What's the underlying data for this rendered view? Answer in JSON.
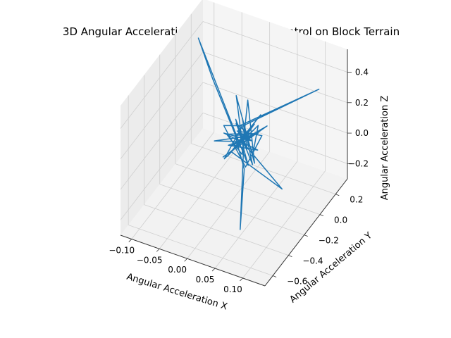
{
  "chart_data": {
    "type": "line3d",
    "title": "3D Angular Acceleration Plot for Neural Control on Block Terrain",
    "xlabel": "Angular Acceleration X",
    "ylabel": "Angular Acceleration Y",
    "zlabel": "Angular Acceleration Z",
    "xlim": [
      -0.12,
      0.14
    ],
    "ylim": [
      -0.7,
      0.35
    ],
    "zlim": [
      -0.3,
      0.55
    ],
    "x_ticks": [
      "−0.10",
      "−0.05",
      "0.00",
      "0.05",
      "0.10"
    ],
    "y_ticks": [
      "−0.6",
      "−0.4",
      "−0.2",
      "0.0",
      "0.2"
    ],
    "z_ticks": [
      "−0.2",
      "0.0",
      "0.2",
      "0.4"
    ],
    "grid": true,
    "series_color": "#1f77b4",
    "series": [
      {
        "x": [
          0.0,
          0.015,
          -0.012,
          0.022,
          -0.018,
          0.008,
          -0.025,
          0.03,
          -0.005,
          0.012,
          -0.02,
          0.018,
          -0.1,
          -0.06,
          0.01,
          -0.008,
          0.035,
          -0.03,
          0.02,
          -0.012,
          0.1,
          0.0,
          -0.022,
          0.028,
          -0.004,
          0.014,
          -0.035,
          0.025,
          -0.01,
          0.008,
          0.06,
          0.01,
          -0.015,
          0.02,
          -0.006,
          0.11,
          0.0,
          -0.018,
          0.012,
          0.025,
          -0.008,
          -0.04,
          0.016,
          0.03,
          -0.002,
          0.005,
          -0.03,
          0.018,
          -0.012,
          0.02,
          -0.05,
          0.0,
          0.015,
          -0.01,
          0.022,
          -0.014,
          0.006,
          0.0
        ],
        "y": [
          0.0,
          0.05,
          -0.04,
          0.08,
          -0.06,
          0.02,
          0.1,
          -0.08,
          0.04,
          -0.02,
          0.06,
          -0.05,
          0.15,
          0.05,
          -0.1,
          0.03,
          0.07,
          -0.03,
          0.02,
          -0.06,
          -0.2,
          0.0,
          0.08,
          -0.04,
          0.1,
          -0.1,
          0.05,
          0.02,
          -0.02,
          -0.03,
          -0.45,
          -0.05,
          0.06,
          -0.08,
          0.03,
          0.2,
          0.0,
          -0.1,
          0.12,
          -0.04,
          0.05,
          0.05,
          -0.07,
          0.04,
          -0.05,
          0.09,
          -0.02,
          0.07,
          -0.09,
          0.01,
          0.0,
          0.0,
          -0.06,
          0.03,
          0.05,
          -0.04,
          0.02,
          0.0
        ],
        "z": [
          0.0,
          0.1,
          -0.05,
          0.15,
          -0.08,
          0.05,
          0.02,
          -0.06,
          0.12,
          -0.02,
          0.08,
          -0.1,
          0.45,
          0.3,
          0.05,
          -0.03,
          0.1,
          -0.12,
          0.06,
          -0.04,
          -0.05,
          0.0,
          0.22,
          -0.08,
          0.2,
          0.0,
          -0.03,
          0.07,
          0.04,
          -0.15,
          -0.2,
          0.03,
          -0.05,
          0.1,
          0.08,
          0.35,
          0.1,
          -0.07,
          0.04,
          -0.02,
          0.06,
          0.02,
          -0.1,
          0.05,
          0.1,
          -0.05,
          0.03,
          -0.08,
          0.02,
          0.06,
          -0.06,
          0.0,
          0.12,
          -0.03,
          0.05,
          -0.02,
          0.04,
          0.0
        ]
      }
    ]
  }
}
